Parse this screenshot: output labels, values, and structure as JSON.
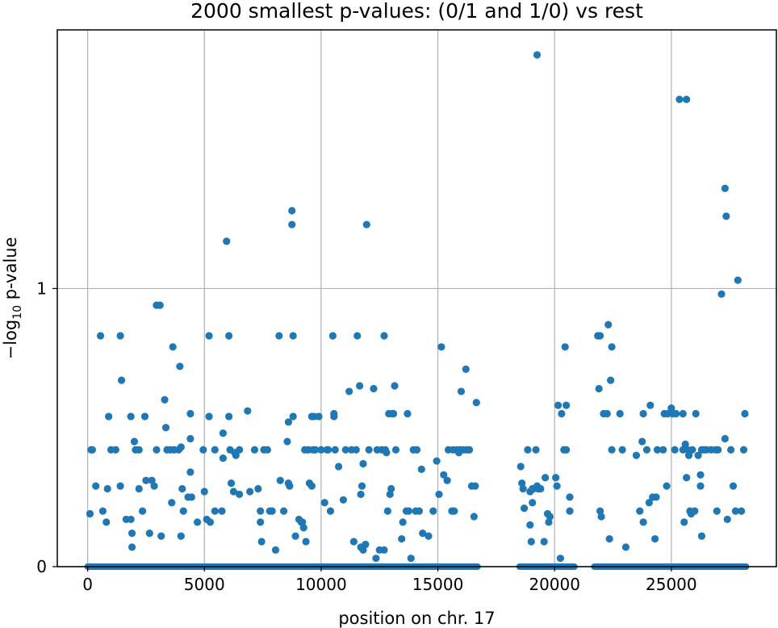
{
  "chart_data": {
    "type": "scatter",
    "title": "2000 smallest p-values: (0/1 and 1/0) vs rest",
    "xlabel": "position on chr. 17",
    "ylabel_prefix": "−log",
    "ylabel_sub": "10",
    "ylabel_suffix": " p-value",
    "xlim": [
      -1300,
      29500
    ],
    "ylim": [
      0,
      1.93
    ],
    "x_ticks": [
      0,
      5000,
      10000,
      15000,
      20000,
      25000
    ],
    "y_ticks": [
      0,
      1
    ],
    "grid": true,
    "color": "#1f77b4",
    "series": [
      {
        "points": [
          [
            100,
            0.19
          ],
          [
            150,
            0.42
          ],
          [
            200,
            0.42
          ],
          [
            350,
            0.29
          ],
          [
            550,
            0.83
          ],
          [
            650,
            0.2
          ],
          [
            800,
            0.16
          ],
          [
            850,
            0.28
          ],
          [
            900,
            0.54
          ],
          [
            1000,
            0.42
          ],
          [
            1200,
            0.42
          ],
          [
            1400,
            0.83
          ],
          [
            1400,
            0.29
          ],
          [
            1450,
            0.67
          ],
          [
            1650,
            0.17
          ],
          [
            1850,
            0.17
          ],
          [
            1850,
            0.54
          ],
          [
            1900,
            0.12
          ],
          [
            1900,
            0.07
          ],
          [
            2000,
            0.45
          ],
          [
            2050,
            0.42
          ],
          [
            2200,
            0.42
          ],
          [
            2200,
            0.28
          ],
          [
            2350,
            0.2
          ],
          [
            2450,
            0.54
          ],
          [
            2500,
            0.31
          ],
          [
            2650,
            0.12
          ],
          [
            2750,
            0.31
          ],
          [
            2850,
            0.29
          ],
          [
            2950,
            0.42
          ],
          [
            2950,
            0.94
          ],
          [
            3100,
            0.94
          ],
          [
            3150,
            0.11
          ],
          [
            3300,
            0.6
          ],
          [
            3350,
            0.5
          ],
          [
            3400,
            0.42
          ],
          [
            3550,
            0.42
          ],
          [
            3600,
            0.23
          ],
          [
            3650,
            0.79
          ],
          [
            3700,
            0.42
          ],
          [
            3900,
            0.42
          ],
          [
            3950,
            0.72
          ],
          [
            4000,
            0.43
          ],
          [
            4000,
            0.11
          ],
          [
            4050,
            0.28
          ],
          [
            4100,
            0.2
          ],
          [
            4300,
            0.25
          ],
          [
            4400,
            0.55
          ],
          [
            4400,
            0.46
          ],
          [
            4400,
            0.34
          ],
          [
            4450,
            0.25
          ],
          [
            4700,
            0.16
          ],
          [
            4950,
            0.42
          ],
          [
            5000,
            0.27
          ],
          [
            5100,
            0.17
          ],
          [
            5200,
            0.83
          ],
          [
            5200,
            0.54
          ],
          [
            5250,
            0.16
          ],
          [
            5450,
            0.2
          ],
          [
            5450,
            0.42
          ],
          [
            5750,
            0.2
          ],
          [
            5800,
            0.39
          ],
          [
            5800,
            0.48
          ],
          [
            5950,
            1.17
          ],
          [
            6050,
            0.83
          ],
          [
            6050,
            0.54
          ],
          [
            6100,
            0.42
          ],
          [
            6150,
            0.3
          ],
          [
            6250,
            0.27
          ],
          [
            6300,
            0.41
          ],
          [
            6350,
            0.4
          ],
          [
            6500,
            0.42
          ],
          [
            6500,
            0.26
          ],
          [
            6850,
            0.56
          ],
          [
            6950,
            0.27
          ],
          [
            7150,
            0.42
          ],
          [
            7300,
            0.28
          ],
          [
            7400,
            0.2
          ],
          [
            7400,
            0.16
          ],
          [
            7450,
            0.09
          ],
          [
            7550,
            0.42
          ],
          [
            7700,
            0.42
          ],
          [
            7800,
            0.2
          ],
          [
            7900,
            0.2
          ],
          [
            8050,
            0.06
          ],
          [
            8200,
            0.83
          ],
          [
            8250,
            0.31
          ],
          [
            8400,
            0.2
          ],
          [
            8550,
            0.45
          ],
          [
            8600,
            0.52
          ],
          [
            8600,
            0.3
          ],
          [
            8650,
            0.29
          ],
          [
            8750,
            1.23
          ],
          [
            8750,
            1.28
          ],
          [
            8800,
            0.83
          ],
          [
            8800,
            0.54
          ],
          [
            8900,
            0.11
          ],
          [
            9050,
            0.17
          ],
          [
            9150,
            0.16
          ],
          [
            9200,
            0.16
          ],
          [
            9250,
            0.14
          ],
          [
            9300,
            0.42
          ],
          [
            9350,
            0.09
          ],
          [
            9450,
            0.42
          ],
          [
            9500,
            0.3
          ],
          [
            9600,
            0.54
          ],
          [
            9600,
            0.29
          ],
          [
            9650,
            0.42
          ],
          [
            9700,
            0.54
          ],
          [
            9750,
            0.42
          ],
          [
            9900,
            0.54
          ],
          [
            10000,
            0.42
          ],
          [
            10150,
            0.23
          ],
          [
            10250,
            0.42
          ],
          [
            10300,
            0.42
          ],
          [
            10400,
            0.2
          ],
          [
            10500,
            0.83
          ],
          [
            10550,
            0.55
          ],
          [
            10550,
            0.54
          ],
          [
            10600,
            0.42
          ],
          [
            10750,
            0.36
          ],
          [
            10950,
            0.24
          ],
          [
            11050,
            0.42
          ],
          [
            11200,
            0.63
          ],
          [
            11300,
            0.42
          ],
          [
            11400,
            0.09
          ],
          [
            11500,
            0.42
          ],
          [
            11550,
            0.83
          ],
          [
            11650,
            0.65
          ],
          [
            11700,
            0.07
          ],
          [
            11700,
            0.26
          ],
          [
            11750,
            0.29
          ],
          [
            11800,
            0.37
          ],
          [
            11800,
            0.06
          ],
          [
            11900,
            0.08
          ],
          [
            11950,
            1.23
          ],
          [
            12050,
            0.42
          ],
          [
            12250,
            0.64
          ],
          [
            12350,
            0.03
          ],
          [
            12400,
            0.42
          ],
          [
            12500,
            0.06
          ],
          [
            12600,
            0.42
          ],
          [
            12700,
            0.83
          ],
          [
            12700,
            0.06
          ],
          [
            12750,
            0.42
          ],
          [
            12800,
            0.41
          ],
          [
            12850,
            0.2
          ],
          [
            12900,
            0.55
          ],
          [
            12950,
            0.26
          ],
          [
            13000,
            0.28
          ],
          [
            13050,
            0.55
          ],
          [
            13100,
            0.55
          ],
          [
            13150,
            0.65
          ],
          [
            13200,
            0.42
          ],
          [
            13450,
            0.1
          ],
          [
            13500,
            0.16
          ],
          [
            13650,
            0.2
          ],
          [
            13700,
            0.55
          ],
          [
            13750,
            0.2
          ],
          [
            13850,
            0.03
          ],
          [
            13950,
            0.42
          ],
          [
            14050,
            0.2
          ],
          [
            14100,
            0.42
          ],
          [
            14200,
            0.2
          ],
          [
            14300,
            0.35
          ],
          [
            14350,
            0.12
          ],
          [
            14600,
            0.11
          ],
          [
            14800,
            0.2
          ],
          [
            14950,
            0.38
          ],
          [
            15050,
            0.26
          ],
          [
            15150,
            0.79
          ],
          [
            15250,
            0.33
          ],
          [
            15400,
            0.31
          ],
          [
            15450,
            0.42
          ],
          [
            15600,
            0.2
          ],
          [
            15650,
            0.42
          ],
          [
            15700,
            0.2
          ],
          [
            15800,
            0.42
          ],
          [
            15900,
            0.41
          ],
          [
            15950,
            0.42
          ],
          [
            16000,
            0.63
          ],
          [
            16100,
            0.42
          ],
          [
            16200,
            0.71
          ],
          [
            16250,
            0.42
          ],
          [
            16350,
            0.42
          ],
          [
            16450,
            0.29
          ],
          [
            16550,
            0.18
          ],
          [
            16600,
            0.29
          ],
          [
            16650,
            0.59
          ],
          [
            18550,
            0.36
          ],
          [
            18600,
            0.3
          ],
          [
            18650,
            0.28
          ],
          [
            18700,
            0.21
          ],
          [
            18850,
            0.42
          ],
          [
            18950,
            0.15
          ],
          [
            18950,
            0.27
          ],
          [
            19000,
            0.09
          ],
          [
            19050,
            0.23
          ],
          [
            19050,
            0.28
          ],
          [
            19100,
            0.28
          ],
          [
            19200,
            0.42
          ],
          [
            19250,
            0.29
          ],
          [
            19250,
            1.84
          ],
          [
            19300,
            0.28
          ],
          [
            19400,
            0.28
          ],
          [
            19550,
            0.09
          ],
          [
            19600,
            0.32
          ],
          [
            19700,
            0.19
          ],
          [
            19750,
            0.16
          ],
          [
            19800,
            0.18
          ],
          [
            20050,
            0.32
          ],
          [
            20100,
            0.29
          ],
          [
            20150,
            0.58
          ],
          [
            20250,
            0.03
          ],
          [
            20300,
            0.55
          ],
          [
            20400,
            0.42
          ],
          [
            20450,
            0.79
          ],
          [
            20500,
            0.42
          ],
          [
            20500,
            0.58
          ],
          [
            20650,
            0.25
          ],
          [
            20650,
            0.2
          ],
          [
            21850,
            0.83
          ],
          [
            21900,
            0.64
          ],
          [
            21950,
            0.83
          ],
          [
            21950,
            0.2
          ],
          [
            22000,
            0.18
          ],
          [
            22100,
            0.55
          ],
          [
            22250,
            0.55
          ],
          [
            22300,
            0.87
          ],
          [
            22350,
            0.1
          ],
          [
            22400,
            0.67
          ],
          [
            22450,
            0.42
          ],
          [
            22450,
            0.79
          ],
          [
            22800,
            0.55
          ],
          [
            22900,
            0.42
          ],
          [
            23050,
            0.07
          ],
          [
            23500,
            0.4
          ],
          [
            23650,
            0.2
          ],
          [
            23750,
            0.45
          ],
          [
            23800,
            0.16
          ],
          [
            23800,
            0.55
          ],
          [
            23950,
            0.42
          ],
          [
            24050,
            0.23
          ],
          [
            24100,
            0.58
          ],
          [
            24200,
            0.25
          ],
          [
            24300,
            0.1
          ],
          [
            24350,
            0.25
          ],
          [
            24400,
            0.42
          ],
          [
            24650,
            0.42
          ],
          [
            24700,
            0.55
          ],
          [
            24800,
            0.29
          ],
          [
            24850,
            0.55
          ],
          [
            25000,
            0.57
          ],
          [
            25050,
            0.55
          ],
          [
            25150,
            0.42
          ],
          [
            25200,
            0.55
          ],
          [
            25350,
            1.68
          ],
          [
            25500,
            0.42
          ],
          [
            25500,
            0.55
          ],
          [
            25550,
            0.16
          ],
          [
            25600,
            0.44
          ],
          [
            25650,
            1.68
          ],
          [
            25650,
            0.32
          ],
          [
            25700,
            0.42
          ],
          [
            25750,
            0.4
          ],
          [
            25800,
            0.2
          ],
          [
            25850,
            0.19
          ],
          [
            25900,
            0.42
          ],
          [
            26000,
            0.2
          ],
          [
            26050,
            0.55
          ],
          [
            26150,
            0.4
          ],
          [
            26250,
            0.29
          ],
          [
            26250,
            0.33
          ],
          [
            26300,
            0.42
          ],
          [
            26300,
            0.11
          ],
          [
            26400,
            0.42
          ],
          [
            26500,
            0.42
          ],
          [
            26700,
            0.42
          ],
          [
            26900,
            0.42
          ],
          [
            26950,
            0.2
          ],
          [
            27000,
            0.42
          ],
          [
            27150,
            0.98
          ],
          [
            27300,
            1.36
          ],
          [
            27300,
            0.46
          ],
          [
            27350,
            1.26
          ],
          [
            27400,
            0.17
          ],
          [
            27550,
            0.42
          ],
          [
            27650,
            0.29
          ],
          [
            27750,
            0.2
          ],
          [
            27850,
            1.03
          ],
          [
            28000,
            0.2
          ],
          [
            28100,
            0.42
          ],
          [
            28150,
            0.55
          ]
        ],
        "zero_band": [
          [
            0,
            16700
          ],
          [
            18500,
            20850
          ],
          [
            21700,
            28200
          ]
        ]
      }
    ]
  }
}
